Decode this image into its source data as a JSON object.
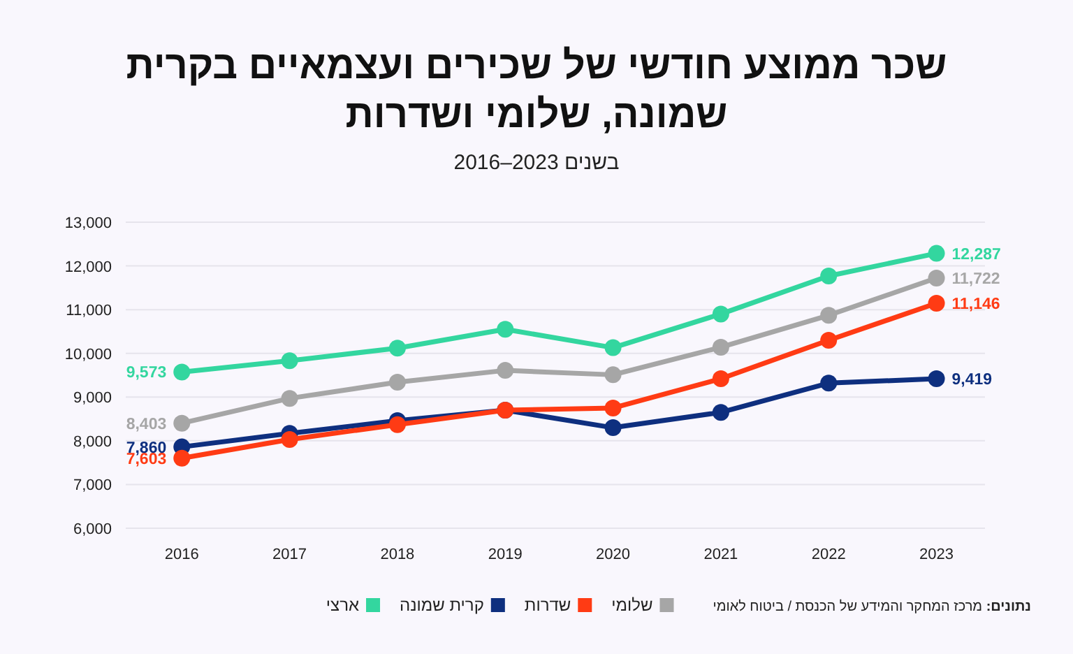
{
  "chart_data": {
    "type": "line",
    "title": "שכר ממוצע חודשי של שכירים ועצמאיים בקרית שמונה, שלומי ושדרות",
    "subtitle": "בשנים 2016–2023",
    "categories": [
      "2016",
      "2017",
      "2018",
      "2019",
      "2020",
      "2021",
      "2022",
      "2023"
    ],
    "ylim": [
      6000,
      13000
    ],
    "yticks": [
      {
        "value": 6000,
        "label": "6,000"
      },
      {
        "value": 7000,
        "label": "7,000"
      },
      {
        "value": 8000,
        "label": "8,000"
      },
      {
        "value": 9000,
        "label": "9,000"
      },
      {
        "value": 10000,
        "label": "10,000"
      },
      {
        "value": 11000,
        "label": "11,000"
      },
      {
        "value": 12000,
        "label": "12,000"
      },
      {
        "value": 13000,
        "label": "13,000"
      }
    ],
    "grid": "y",
    "legend": "bottom",
    "marker": "circle",
    "line_style": "solid",
    "annotations": [
      "**נתונים:** מרכז המחקר והמידע של הכנסת / ביטוח לאומי"
    ],
    "series": [
      {
        "name": "שלומי",
        "color": "#a6a6a6",
        "values": [
          8403,
          8970,
          9340,
          9610,
          9510,
          10140,
          10870,
          11722
        ],
        "value_labels": [
          "8,403",
          null,
          null,
          null,
          null,
          null,
          null,
          "11,722"
        ]
      },
      {
        "name": "שדרות",
        "color": "#ff3b14",
        "values": [
          7603,
          8030,
          8370,
          8700,
          8750,
          9420,
          10300,
          11146
        ],
        "value_labels": [
          "7,603",
          null,
          null,
          null,
          null,
          null,
          null,
          "11,146"
        ]
      },
      {
        "name": "קרית שמונה",
        "color": "#0e2f7f",
        "values": [
          7860,
          8170,
          8460,
          8700,
          8300,
          8650,
          9320,
          9419
        ],
        "value_labels": [
          "7,860",
          null,
          null,
          null,
          null,
          null,
          null,
          "9,419"
        ]
      },
      {
        "name": "ארצי",
        "color": "#33d69f",
        "values": [
          9573,
          9830,
          10120,
          10550,
          10130,
          10900,
          11770,
          12287
        ],
        "value_labels": [
          "9,573",
          null,
          null,
          null,
          null,
          null,
          null,
          "12,287"
        ]
      }
    ]
  }
}
